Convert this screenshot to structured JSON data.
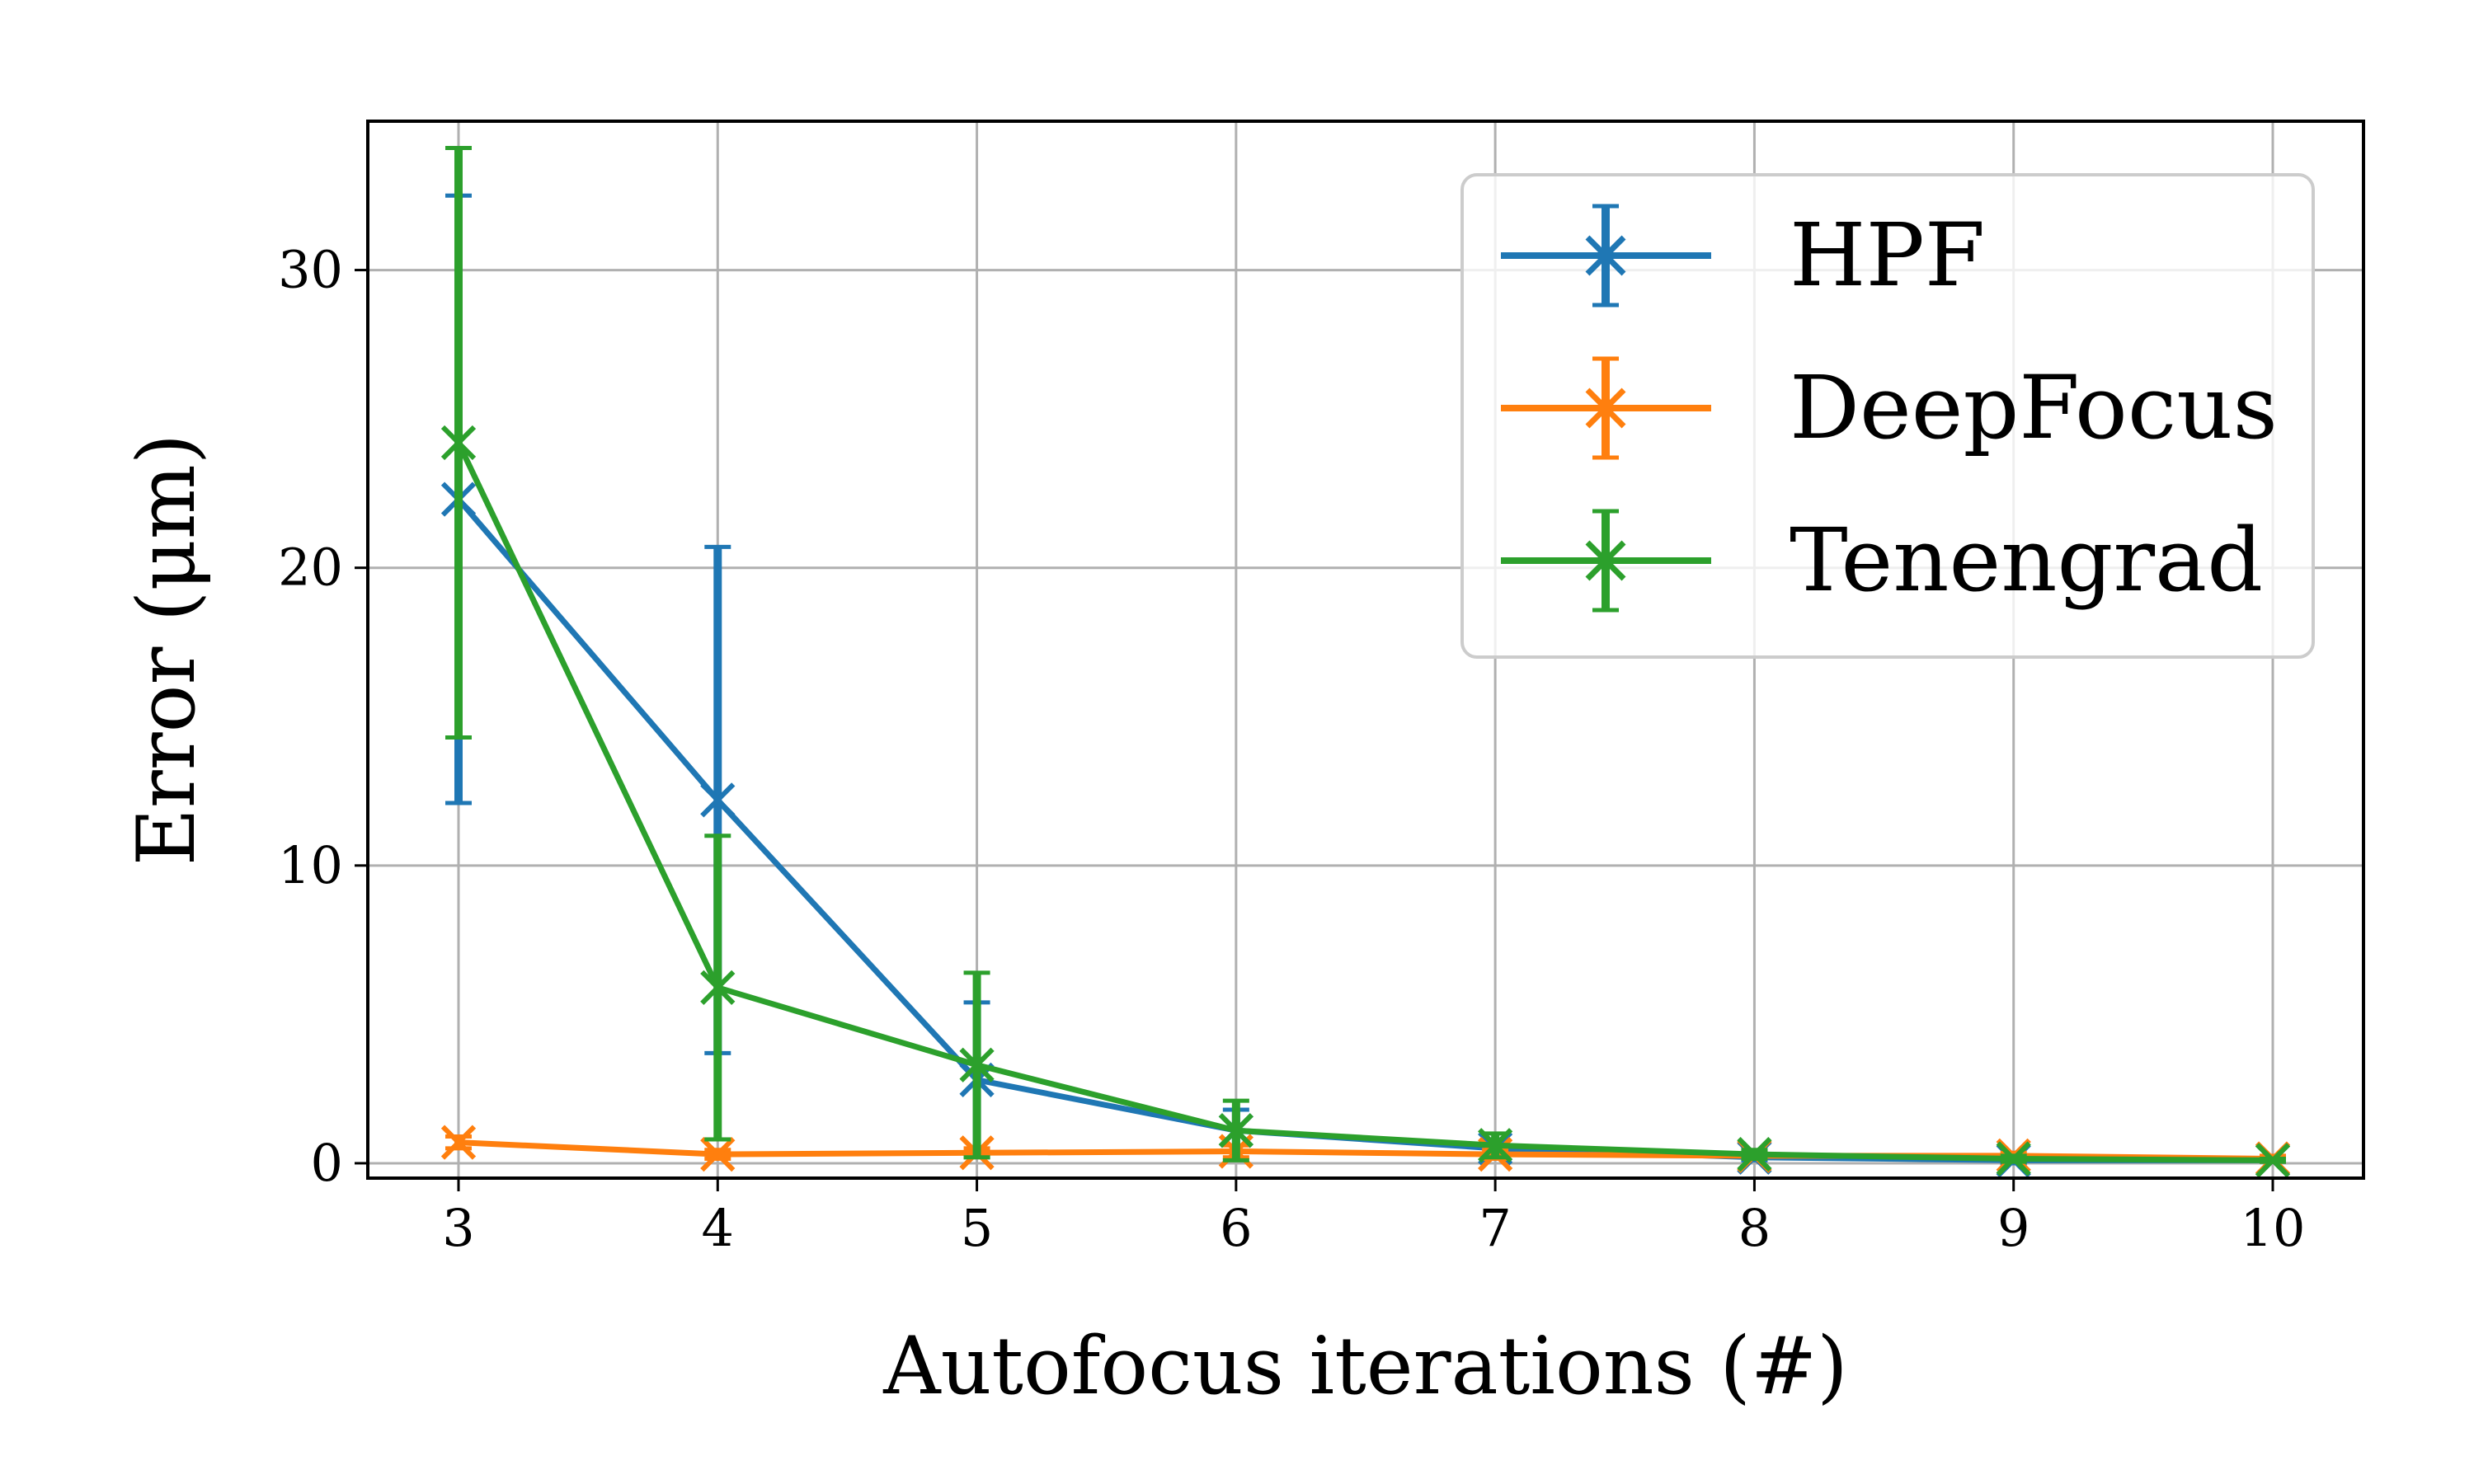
{
  "chart_data": {
    "type": "line",
    "title": "",
    "xlabel": "Autofocus iterations (#)",
    "ylabel": "Error (μm)",
    "x": [
      3,
      4,
      5,
      6,
      7,
      8,
      9,
      10
    ],
    "xlim": [
      2.65,
      10.35
    ],
    "ylim": [
      -0.5,
      35
    ],
    "xticks": [
      "3",
      "4",
      "5",
      "6",
      "7",
      "8",
      "9",
      "10"
    ],
    "yticks": [
      0,
      10,
      20,
      30
    ],
    "ytick_labels": [
      "0",
      "10",
      "20",
      "30"
    ],
    "grid": true,
    "legend_position": "top-right",
    "marker": "x",
    "series": [
      {
        "name": "HPF",
        "color": "#1f77b4",
        "values": [
          22.3,
          12.2,
          2.8,
          1.1,
          0.5,
          0.2,
          0.1,
          0.1
        ],
        "error": [
          10.2,
          8.5,
          2.6,
          0.7,
          0.3,
          0.1,
          0.1,
          0.05
        ]
      },
      {
        "name": "DeepFocus",
        "color": "#ff7f0e",
        "values": [
          0.7,
          0.3,
          0.35,
          0.4,
          0.3,
          0.25,
          0.25,
          0.15
        ],
        "error": [
          0.2,
          0.15,
          0.15,
          0.2,
          0.15,
          0.1,
          0.1,
          0.1
        ]
      },
      {
        "name": "Tenengrad",
        "color": "#2ca02c",
        "values": [
          24.2,
          5.9,
          3.3,
          1.1,
          0.6,
          0.3,
          0.15,
          0.1
        ],
        "error": [
          9.9,
          5.1,
          3.1,
          1.0,
          0.4,
          0.15,
          0.1,
          0.05
        ]
      }
    ]
  }
}
